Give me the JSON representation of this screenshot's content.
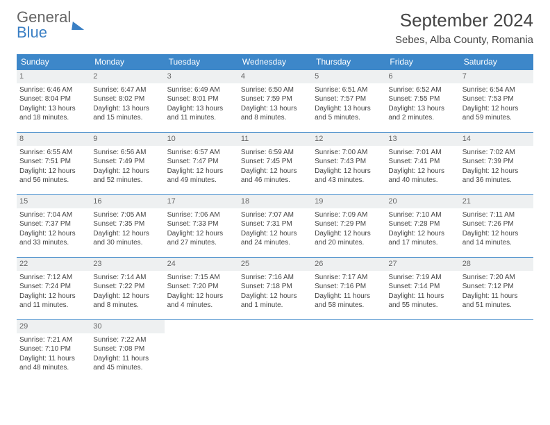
{
  "brand": {
    "part1": "General",
    "part2": "Blue"
  },
  "title": "September 2024",
  "location": "Sebes, Alba County, Romania",
  "colors": {
    "header_bg": "#3d87c9",
    "brand_blue": "#3a7fc4",
    "text": "#444444"
  },
  "weekdays": [
    "Sunday",
    "Monday",
    "Tuesday",
    "Wednesday",
    "Thursday",
    "Friday",
    "Saturday"
  ],
  "weeks": [
    [
      {
        "n": "1",
        "sr": "Sunrise: 6:46 AM",
        "ss": "Sunset: 8:04 PM",
        "d1": "Daylight: 13 hours",
        "d2": "and 18 minutes."
      },
      {
        "n": "2",
        "sr": "Sunrise: 6:47 AM",
        "ss": "Sunset: 8:02 PM",
        "d1": "Daylight: 13 hours",
        "d2": "and 15 minutes."
      },
      {
        "n": "3",
        "sr": "Sunrise: 6:49 AM",
        "ss": "Sunset: 8:01 PM",
        "d1": "Daylight: 13 hours",
        "d2": "and 11 minutes."
      },
      {
        "n": "4",
        "sr": "Sunrise: 6:50 AM",
        "ss": "Sunset: 7:59 PM",
        "d1": "Daylight: 13 hours",
        "d2": "and 8 minutes."
      },
      {
        "n": "5",
        "sr": "Sunrise: 6:51 AM",
        "ss": "Sunset: 7:57 PM",
        "d1": "Daylight: 13 hours",
        "d2": "and 5 minutes."
      },
      {
        "n": "6",
        "sr": "Sunrise: 6:52 AM",
        "ss": "Sunset: 7:55 PM",
        "d1": "Daylight: 13 hours",
        "d2": "and 2 minutes."
      },
      {
        "n": "7",
        "sr": "Sunrise: 6:54 AM",
        "ss": "Sunset: 7:53 PM",
        "d1": "Daylight: 12 hours",
        "d2": "and 59 minutes."
      }
    ],
    [
      {
        "n": "8",
        "sr": "Sunrise: 6:55 AM",
        "ss": "Sunset: 7:51 PM",
        "d1": "Daylight: 12 hours",
        "d2": "and 56 minutes."
      },
      {
        "n": "9",
        "sr": "Sunrise: 6:56 AM",
        "ss": "Sunset: 7:49 PM",
        "d1": "Daylight: 12 hours",
        "d2": "and 52 minutes."
      },
      {
        "n": "10",
        "sr": "Sunrise: 6:57 AM",
        "ss": "Sunset: 7:47 PM",
        "d1": "Daylight: 12 hours",
        "d2": "and 49 minutes."
      },
      {
        "n": "11",
        "sr": "Sunrise: 6:59 AM",
        "ss": "Sunset: 7:45 PM",
        "d1": "Daylight: 12 hours",
        "d2": "and 46 minutes."
      },
      {
        "n": "12",
        "sr": "Sunrise: 7:00 AM",
        "ss": "Sunset: 7:43 PM",
        "d1": "Daylight: 12 hours",
        "d2": "and 43 minutes."
      },
      {
        "n": "13",
        "sr": "Sunrise: 7:01 AM",
        "ss": "Sunset: 7:41 PM",
        "d1": "Daylight: 12 hours",
        "d2": "and 40 minutes."
      },
      {
        "n": "14",
        "sr": "Sunrise: 7:02 AM",
        "ss": "Sunset: 7:39 PM",
        "d1": "Daylight: 12 hours",
        "d2": "and 36 minutes."
      }
    ],
    [
      {
        "n": "15",
        "sr": "Sunrise: 7:04 AM",
        "ss": "Sunset: 7:37 PM",
        "d1": "Daylight: 12 hours",
        "d2": "and 33 minutes."
      },
      {
        "n": "16",
        "sr": "Sunrise: 7:05 AM",
        "ss": "Sunset: 7:35 PM",
        "d1": "Daylight: 12 hours",
        "d2": "and 30 minutes."
      },
      {
        "n": "17",
        "sr": "Sunrise: 7:06 AM",
        "ss": "Sunset: 7:33 PM",
        "d1": "Daylight: 12 hours",
        "d2": "and 27 minutes."
      },
      {
        "n": "18",
        "sr": "Sunrise: 7:07 AM",
        "ss": "Sunset: 7:31 PM",
        "d1": "Daylight: 12 hours",
        "d2": "and 24 minutes."
      },
      {
        "n": "19",
        "sr": "Sunrise: 7:09 AM",
        "ss": "Sunset: 7:29 PM",
        "d1": "Daylight: 12 hours",
        "d2": "and 20 minutes."
      },
      {
        "n": "20",
        "sr": "Sunrise: 7:10 AM",
        "ss": "Sunset: 7:28 PM",
        "d1": "Daylight: 12 hours",
        "d2": "and 17 minutes."
      },
      {
        "n": "21",
        "sr": "Sunrise: 7:11 AM",
        "ss": "Sunset: 7:26 PM",
        "d1": "Daylight: 12 hours",
        "d2": "and 14 minutes."
      }
    ],
    [
      {
        "n": "22",
        "sr": "Sunrise: 7:12 AM",
        "ss": "Sunset: 7:24 PM",
        "d1": "Daylight: 12 hours",
        "d2": "and 11 minutes."
      },
      {
        "n": "23",
        "sr": "Sunrise: 7:14 AM",
        "ss": "Sunset: 7:22 PM",
        "d1": "Daylight: 12 hours",
        "d2": "and 8 minutes."
      },
      {
        "n": "24",
        "sr": "Sunrise: 7:15 AM",
        "ss": "Sunset: 7:20 PM",
        "d1": "Daylight: 12 hours",
        "d2": "and 4 minutes."
      },
      {
        "n": "25",
        "sr": "Sunrise: 7:16 AM",
        "ss": "Sunset: 7:18 PM",
        "d1": "Daylight: 12 hours",
        "d2": "and 1 minute."
      },
      {
        "n": "26",
        "sr": "Sunrise: 7:17 AM",
        "ss": "Sunset: 7:16 PM",
        "d1": "Daylight: 11 hours",
        "d2": "and 58 minutes."
      },
      {
        "n": "27",
        "sr": "Sunrise: 7:19 AM",
        "ss": "Sunset: 7:14 PM",
        "d1": "Daylight: 11 hours",
        "d2": "and 55 minutes."
      },
      {
        "n": "28",
        "sr": "Sunrise: 7:20 AM",
        "ss": "Sunset: 7:12 PM",
        "d1": "Daylight: 11 hours",
        "d2": "and 51 minutes."
      }
    ],
    [
      {
        "n": "29",
        "sr": "Sunrise: 7:21 AM",
        "ss": "Sunset: 7:10 PM",
        "d1": "Daylight: 11 hours",
        "d2": "and 48 minutes."
      },
      {
        "n": "30",
        "sr": "Sunrise: 7:22 AM",
        "ss": "Sunset: 7:08 PM",
        "d1": "Daylight: 11 hours",
        "d2": "and 45 minutes."
      },
      null,
      null,
      null,
      null,
      null
    ]
  ]
}
